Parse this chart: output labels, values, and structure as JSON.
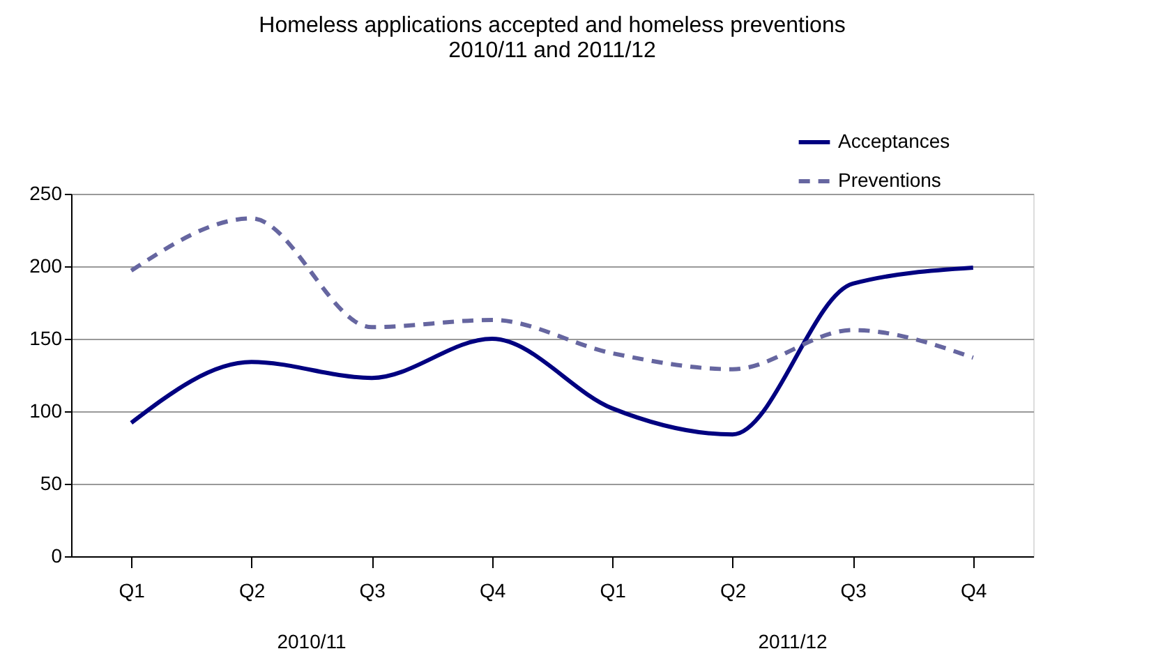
{
  "chart_data": {
    "type": "line",
    "title": "Homeless applications accepted and homeless preventions\n2010/11 and 2011/12",
    "categories": [
      "Q1",
      "Q2",
      "Q3",
      "Q4",
      "Q1",
      "Q2",
      "Q3",
      "Q4"
    ],
    "series": [
      {
        "name": "Acceptances",
        "color": "#000080",
        "line_style": "solid",
        "values": [
          92,
          134,
          123,
          150,
          102,
          84,
          188,
          199
        ]
      },
      {
        "name": "Preventions",
        "color": "#6666a0",
        "line_style": "dashed",
        "values": [
          197,
          233,
          158,
          163,
          140,
          129,
          156,
          137
        ]
      }
    ],
    "annotations": [
      "2010/11",
      "2011/12"
    ],
    "ylim": [
      0,
      250
    ],
    "yticks": [
      0,
      50,
      100,
      150,
      200,
      250
    ],
    "grid": "y",
    "legend": "top right",
    "marker": "none"
  }
}
